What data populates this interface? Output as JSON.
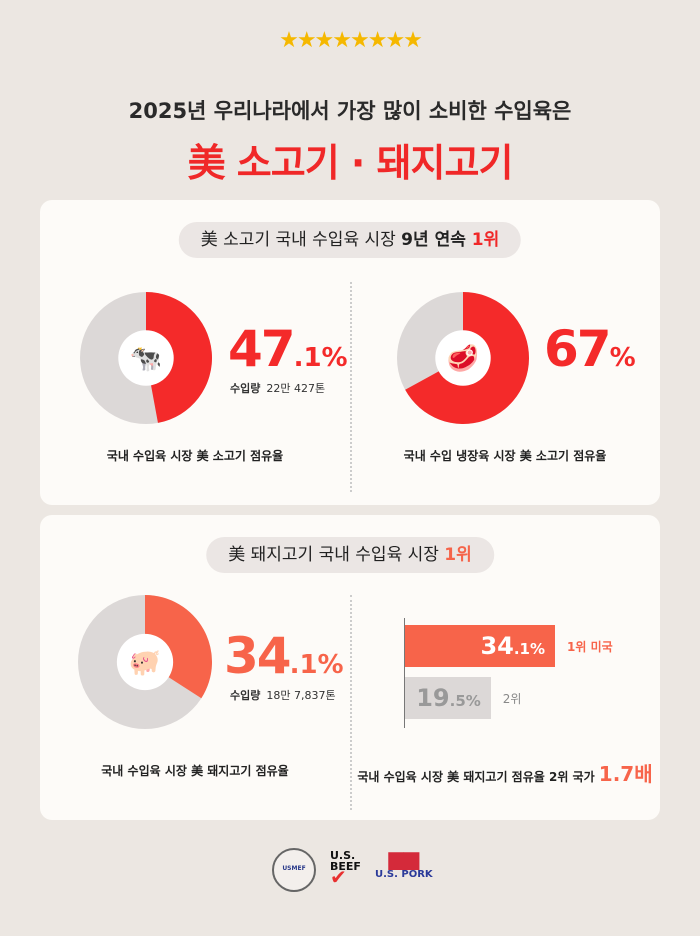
{
  "header": {
    "stars": "★★★★★★★★",
    "subtitle": "2025년 우리나라에서 가장 많이 소비한 수입육은",
    "title": "美 소고기 · 돼지고기"
  },
  "beef": {
    "pill_prefix": "美 소고기 국내 수입육 시장 ",
    "pill_bold": "9년 연속 ",
    "pill_rank": "1위",
    "share_main": "47",
    "share_dec": ".1%",
    "volume_label": "수입량",
    "volume_value": "22만 427톤",
    "caption1": "국내 수입육 시장 美 소고기 점유율",
    "chilled_main": "67",
    "chilled_dec": "%",
    "caption2": "국내 수입 냉장육 시장 美 소고기 점유율"
  },
  "pork": {
    "pill_prefix": "美 돼지고기 국내 수입육 시장 ",
    "pill_rank": "1위",
    "share_main": "34",
    "share_dec": ".1%",
    "volume_label": "수입량",
    "volume_value": "18만 7,837톤",
    "caption1": "국내 수입육 시장 美 돼지고기 점유율",
    "bar1_main": "34",
    "bar1_dec": ".1%",
    "bar1_label": "1위 미국",
    "bar2_main": "19",
    "bar2_dec": ".5%",
    "bar2_label": "2위",
    "caption2": "국내 수입육 시장 美 돼지고기 점유율 2위 국가 ",
    "caption2_highlight": "1.7배"
  },
  "footer": {
    "logos": [
      "U.S. MEAT EXPORT FEDERATION",
      "U.S. BEEF",
      "U.S. PORK"
    ]
  },
  "colors": {
    "beef": "#f42a2a",
    "pork": "#f7644a",
    "rest": "#dcd8d7"
  },
  "chart_data": [
    {
      "type": "pie",
      "style": "donut",
      "icon": "cow-icon",
      "categories": [
        "美 소고기",
        "기타"
      ],
      "values": [
        47.1,
        52.9
      ]
    },
    {
      "type": "pie",
      "style": "donut",
      "icon": "steak-icon",
      "categories": [
        "美 소고기",
        "기타"
      ],
      "values": [
        67,
        33
      ]
    },
    {
      "type": "pie",
      "style": "donut",
      "icon": "pig-icon",
      "categories": [
        "美 돼지고기",
        "기타"
      ],
      "values": [
        34.1,
        65.9
      ]
    },
    {
      "type": "bar",
      "orientation": "horizontal",
      "categories": [
        "1위 미국",
        "2위"
      ],
      "values": [
        34.1,
        19.5
      ]
    }
  ]
}
